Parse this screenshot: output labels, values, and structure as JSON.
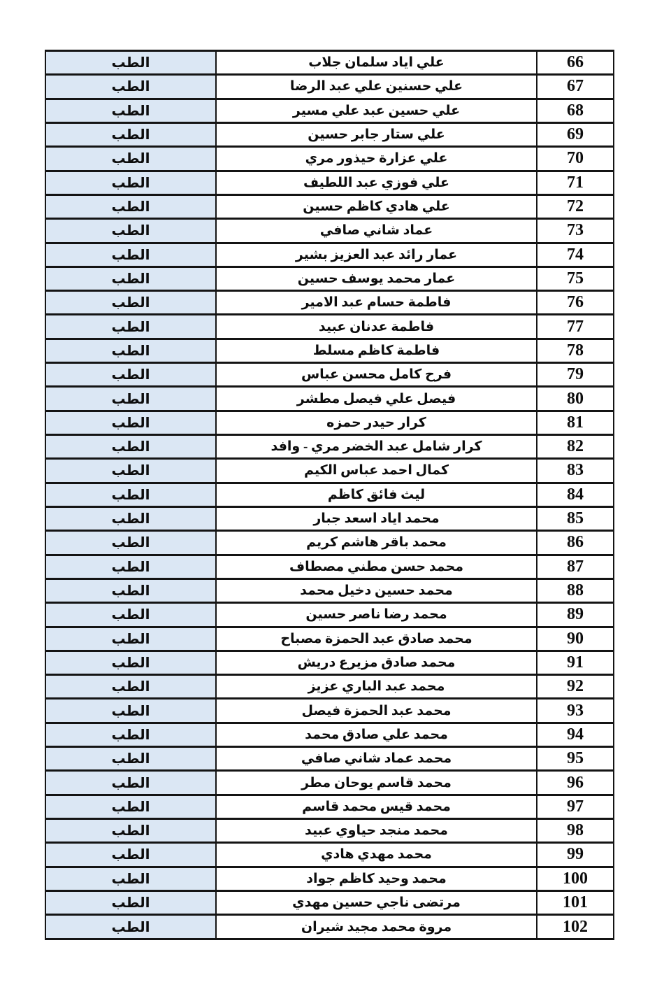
{
  "page": {
    "background_color": "#ffffff",
    "border_color": "#141414"
  },
  "table": {
    "direction": "rtl",
    "dept_cell_background": "#dbe7f4",
    "columns": [
      {
        "key": "no",
        "role": "serial-number"
      },
      {
        "key": "name",
        "role": "student-name"
      },
      {
        "key": "dept",
        "role": "department"
      }
    ],
    "rows": [
      {
        "no": "66",
        "name": "علي اياد سلمان جلاب",
        "dept": "الطب"
      },
      {
        "no": "67",
        "name": "علي حسنين علي عبد الرضا",
        "dept": "الطب"
      },
      {
        "no": "68",
        "name": "علي حسين عبد علي مسير",
        "dept": "الطب"
      },
      {
        "no": "69",
        "name": "علي ستار جابر حسين",
        "dept": "الطب"
      },
      {
        "no": "70",
        "name": "علي عزارة حيذور مري",
        "dept": "الطب"
      },
      {
        "no": "71",
        "name": "علي فوزي عبد اللطيف",
        "dept": "الطب"
      },
      {
        "no": "72",
        "name": "علي هادي كاظم حسين",
        "dept": "الطب"
      },
      {
        "no": "73",
        "name": "عماد شاني صافي",
        "dept": "الطب"
      },
      {
        "no": "74",
        "name": "عمار رائد عبد العزيز بشير",
        "dept": "الطب"
      },
      {
        "no": "75",
        "name": "عمار محمد يوسف حسين",
        "dept": "الطب"
      },
      {
        "no": "76",
        "name": "فاطمة حسام عبد الامير",
        "dept": "الطب"
      },
      {
        "no": "77",
        "name": "فاطمة عدنان عبيد",
        "dept": "الطب"
      },
      {
        "no": "78",
        "name": "فاطمة كاظم مسلط",
        "dept": "الطب"
      },
      {
        "no": "79",
        "name": "فرح كامل محسن عباس",
        "dept": "الطب"
      },
      {
        "no": "80",
        "name": "فيصل علي فيصل مطشر",
        "dept": "الطب"
      },
      {
        "no": "81",
        "name": "كرار حيدر حمزه",
        "dept": "الطب"
      },
      {
        "no": "82",
        "name": "كرار شامل عبد الخضر مري - وافد",
        "dept": "الطب"
      },
      {
        "no": "83",
        "name": "كمال احمد عباس الكيم",
        "dept": "الطب"
      },
      {
        "no": "84",
        "name": "ليث فائق كاظم",
        "dept": "الطب"
      },
      {
        "no": "85",
        "name": "محمد اياد اسعد جبار",
        "dept": "الطب"
      },
      {
        "no": "86",
        "name": "محمد باقر هاشم كريم",
        "dept": "الطب"
      },
      {
        "no": "87",
        "name": "محمد حسن مطني مصطاف",
        "dept": "الطب"
      },
      {
        "no": "88",
        "name": "محمد حسين دخيل محمد",
        "dept": "الطب"
      },
      {
        "no": "89",
        "name": "محمد رضا ناصر حسين",
        "dept": "الطب"
      },
      {
        "no": "90",
        "name": "محمد صادق عبد الحمزة مصباح",
        "dept": "الطب"
      },
      {
        "no": "91",
        "name": "محمد صادق مزيرع دريش",
        "dept": "الطب"
      },
      {
        "no": "92",
        "name": "محمد عبد الباري عزيز",
        "dept": "الطب"
      },
      {
        "no": "93",
        "name": "محمد عبد الحمزة فيصل",
        "dept": "الطب"
      },
      {
        "no": "94",
        "name": "محمد علي صادق محمد",
        "dept": "الطب"
      },
      {
        "no": "95",
        "name": "محمد عماد شاني صافي",
        "dept": "الطب"
      },
      {
        "no": "96",
        "name": "محمد قاسم يوحان مطر",
        "dept": "الطب"
      },
      {
        "no": "97",
        "name": "محمد قيس محمد قاسم",
        "dept": "الطب"
      },
      {
        "no": "98",
        "name": "محمد منجد حياوي عبيد",
        "dept": "الطب"
      },
      {
        "no": "99",
        "name": "محمد مهدي هادي",
        "dept": "الطب"
      },
      {
        "no": "100",
        "name": "محمد وحيد كاظم جواد",
        "dept": "الطب"
      },
      {
        "no": "101",
        "name": "مرتضى ناجي حسين مهدي",
        "dept": "الطب"
      },
      {
        "no": "102",
        "name": "مروة محمد مجيد شيران",
        "dept": "الطب"
      }
    ]
  }
}
